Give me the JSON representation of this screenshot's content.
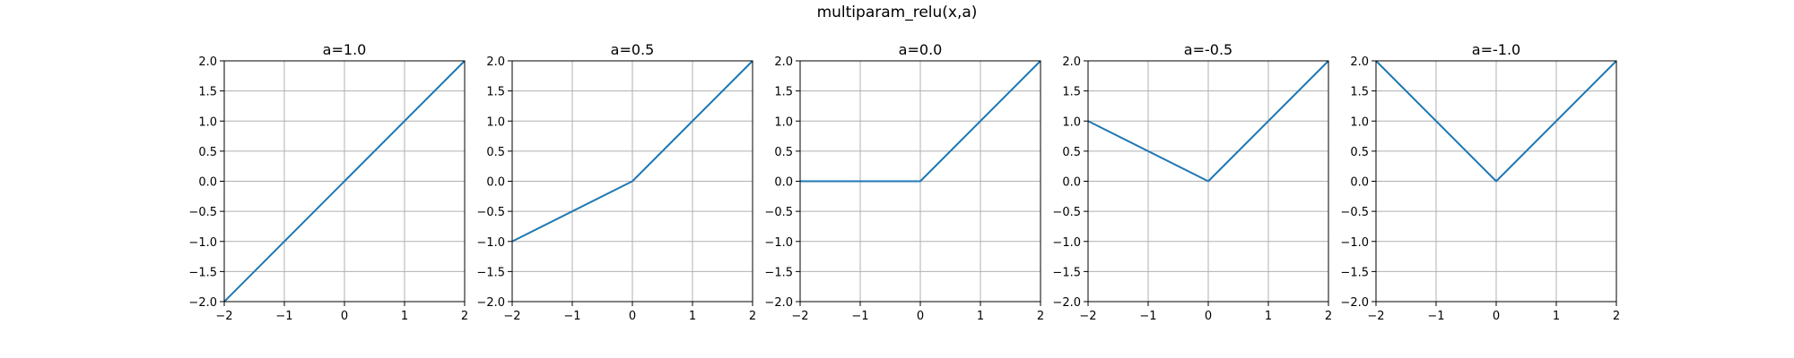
{
  "figure": {
    "suptitle": "multiparam_relu(x,a)"
  },
  "style": {
    "line_color": "#1f77b4",
    "grid_color": "#b0b0b0",
    "axis_color": "#000000"
  },
  "chart_data": [
    {
      "type": "line",
      "title": "a=1.0",
      "x": [
        -2,
        0,
        2
      ],
      "y": [
        -2,
        0,
        2
      ],
      "xlim": [
        -2,
        2
      ],
      "ylim": [
        -2,
        2
      ],
      "xticks": [
        -2,
        -1,
        0,
        1,
        2
      ],
      "yticks": [
        -2.0,
        -1.5,
        -1.0,
        -0.5,
        0.0,
        0.5,
        1.0,
        1.5,
        2.0
      ],
      "xtick_labels": [
        "−2",
        "−1",
        "0",
        "1",
        "2"
      ],
      "ytick_labels": [
        "−2.0",
        "−1.5",
        "−1.0",
        "−0.5",
        "0.0",
        "0.5",
        "1.0",
        "1.5",
        "2.0"
      ],
      "grid": true
    },
    {
      "type": "line",
      "title": "a=0.5",
      "x": [
        -2,
        0,
        2
      ],
      "y": [
        -1,
        0,
        2
      ],
      "xlim": [
        -2,
        2
      ],
      "ylim": [
        -2,
        2
      ],
      "xticks": [
        -2,
        -1,
        0,
        1,
        2
      ],
      "yticks": [
        -2.0,
        -1.5,
        -1.0,
        -0.5,
        0.0,
        0.5,
        1.0,
        1.5,
        2.0
      ],
      "xtick_labels": [
        "−2",
        "−1",
        "0",
        "1",
        "2"
      ],
      "ytick_labels": [
        "−2.0",
        "−1.5",
        "−1.0",
        "−0.5",
        "0.0",
        "0.5",
        "1.0",
        "1.5",
        "2.0"
      ],
      "grid": true
    },
    {
      "type": "line",
      "title": "a=0.0",
      "x": [
        -2,
        0,
        2
      ],
      "y": [
        0,
        0,
        2
      ],
      "xlim": [
        -2,
        2
      ],
      "ylim": [
        -2,
        2
      ],
      "xticks": [
        -2,
        -1,
        0,
        1,
        2
      ],
      "yticks": [
        -2.0,
        -1.5,
        -1.0,
        -0.5,
        0.0,
        0.5,
        1.0,
        1.5,
        2.0
      ],
      "xtick_labels": [
        "−2",
        "−1",
        "0",
        "1",
        "2"
      ],
      "ytick_labels": [
        "−2.0",
        "−1.5",
        "−1.0",
        "−0.5",
        "0.0",
        "0.5",
        "1.0",
        "1.5",
        "2.0"
      ],
      "grid": true
    },
    {
      "type": "line",
      "title": "a=-0.5",
      "x": [
        -2,
        0,
        2
      ],
      "y": [
        1,
        0,
        2
      ],
      "xlim": [
        -2,
        2
      ],
      "ylim": [
        -2,
        2
      ],
      "xticks": [
        -2,
        -1,
        0,
        1,
        2
      ],
      "yticks": [
        -2.0,
        -1.5,
        -1.0,
        -0.5,
        0.0,
        0.5,
        1.0,
        1.5,
        2.0
      ],
      "xtick_labels": [
        "−2",
        "−1",
        "0",
        "1",
        "2"
      ],
      "ytick_labels": [
        "−2.0",
        "−1.5",
        "−1.0",
        "−0.5",
        "0.0",
        "0.5",
        "1.0",
        "1.5",
        "2.0"
      ],
      "grid": true
    },
    {
      "type": "line",
      "title": "a=-1.0",
      "x": [
        -2,
        0,
        2
      ],
      "y": [
        2,
        0,
        2
      ],
      "xlim": [
        -2,
        2
      ],
      "ylim": [
        -2,
        2
      ],
      "xticks": [
        -2,
        -1,
        0,
        1,
        2
      ],
      "yticks": [
        -2.0,
        -1.5,
        -1.0,
        -0.5,
        0.0,
        0.5,
        1.0,
        1.5,
        2.0
      ],
      "xtick_labels": [
        "−2",
        "−1",
        "0",
        "1",
        "2"
      ],
      "ytick_labels": [
        "−2.0",
        "−1.5",
        "−1.0",
        "−0.5",
        "0.0",
        "0.5",
        "1.0",
        "1.5",
        "2.0"
      ],
      "grid": true
    }
  ]
}
